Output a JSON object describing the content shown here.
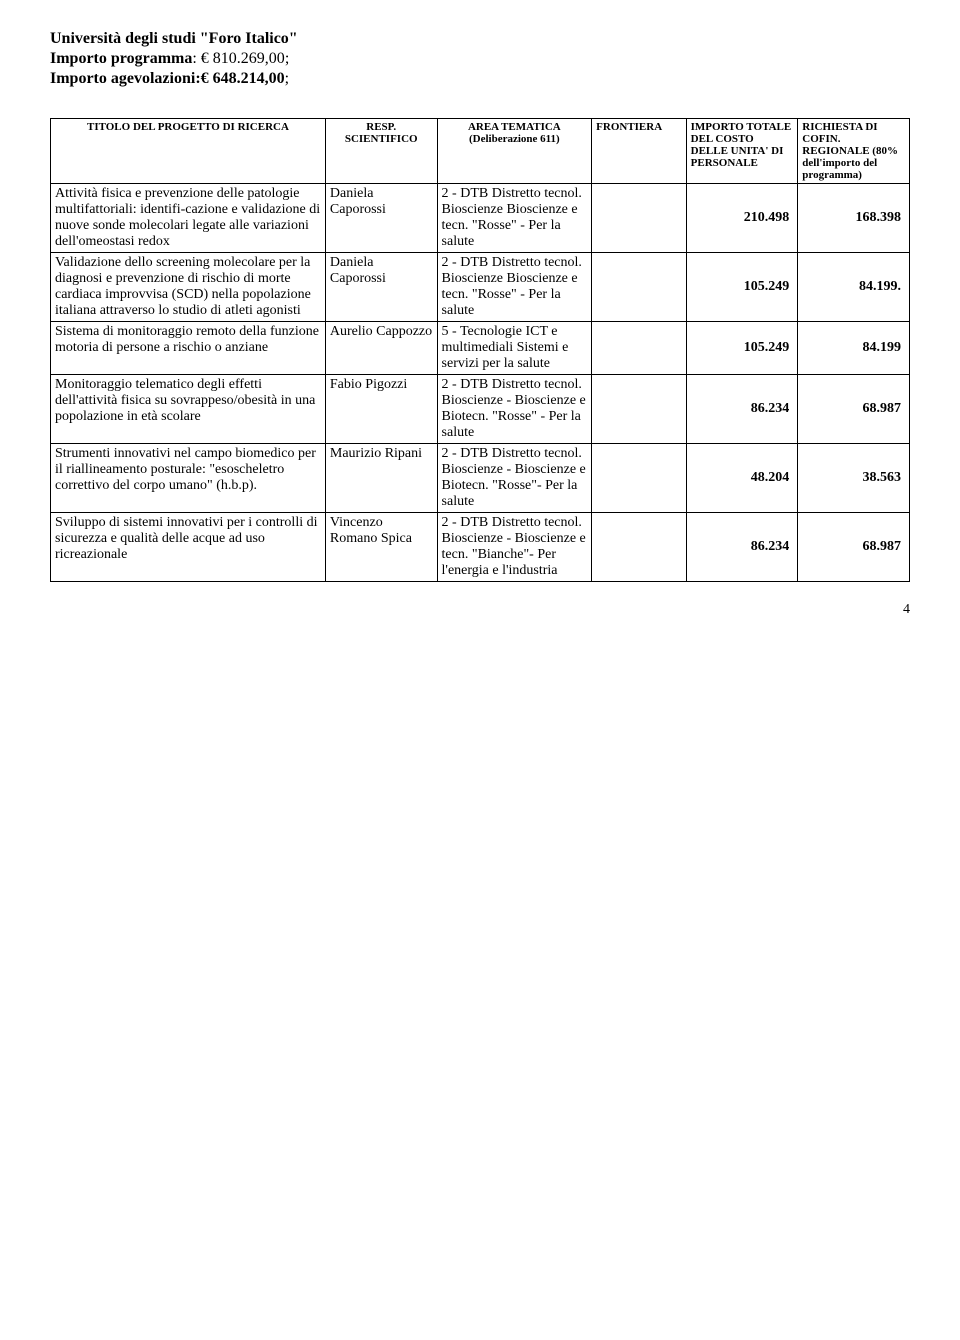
{
  "header": {
    "university_label": "Università degli studi \"Foro Italico\"",
    "importo_programma_label": "Importo programma",
    "importo_programma_value": ": € 810.269,00",
    "importo_agevolazioni_label": "Importo agevolazioni:",
    "importo_agevolazioni_value": "€ 648.214,00",
    "semicolon": ";"
  },
  "table": {
    "headers": {
      "title": "TITOLO DEL PROGETTO DI RICERCA",
      "resp": "RESP. SCIENTIFICO",
      "area": "AREA TEMATICA (Deliberazione 611)",
      "frontiera": "FRONTIERA",
      "importo": "IMPORTO TOTALE DEL COSTO DELLE UNITA' DI PERSONALE",
      "richiesta": "RICHIESTA DI COFIN. REGIONALE (80% dell'importo del programma)"
    },
    "rows": [
      {
        "title": "Attività fisica e prevenzione delle patologie multifattoriali: identifi-cazione e validazione di nuove sonde molecolari legate alle variazioni dell'omeostasi redox",
        "resp": "Daniela Caporossi",
        "area": "2 - DTB Distretto tecnol. Bioscienze Bioscienze e tecn. \"Rosse\" - Per la salute",
        "frontiera": "",
        "importo": "210.498",
        "richiesta": "168.398"
      },
      {
        "title": "Validazione dello screening molecolare per la diagnosi e prevenzione di rischio di morte cardiaca improvvisa (SCD) nella popolazione italiana attraverso lo studio di atleti agonisti",
        "resp": "Daniela Caporossi",
        "area": "2 - DTB Distretto tecnol. Bioscienze Bioscienze e tecn. \"Rosse\" - Per la salute",
        "frontiera": "",
        "importo": "105.249",
        "richiesta": "84.199."
      },
      {
        "title": "Sistema di monitoraggio remoto della funzione motoria di persone a rischio o anziane",
        "resp": "Aurelio Cappozzo",
        "area": "5 - Tecnologie ICT e multimediali Sistemi e servizi per la salute",
        "frontiera": "",
        "importo": "105.249",
        "richiesta": "84.199"
      },
      {
        "title": "Monitoraggio telematico degli effetti dell'attività fisica su sovrappeso/obesità in una popolazione in età scolare",
        "resp": "Fabio Pigozzi",
        "area": "2 - DTB Distretto tecnol. Bioscienze - Bioscienze e Biotecn. \"Rosse\" - Per la salute",
        "frontiera": "",
        "importo": "86.234",
        "richiesta": "68.987"
      },
      {
        "title": "Strumenti innovativi nel campo biomedico per il riallineamento posturale: \"esoscheletro correttivo del corpo umano\" (h.b.p).",
        "resp": "Maurizio Ripani",
        "area": "2 - DTB Distretto tecnol. Bioscienze - Bioscienze e Biotecn. \"Rosse\"- Per la salute",
        "frontiera": "",
        "importo": "48.204",
        "richiesta": "38.563"
      },
      {
        "title": "Sviluppo di sistemi innovativi per i controlli di sicurezza e qualità delle acque ad uso ricreazionale",
        "resp": "Vincenzo Romano Spica",
        "area": "2 - DTB Distretto tecnol. Bioscienze - Bioscienze e tecn. \"Bianche\"- Per l'energia e l'industria",
        "frontiera": "",
        "importo": "86.234",
        "richiesta": "68.987"
      }
    ]
  },
  "page_number": "4"
}
